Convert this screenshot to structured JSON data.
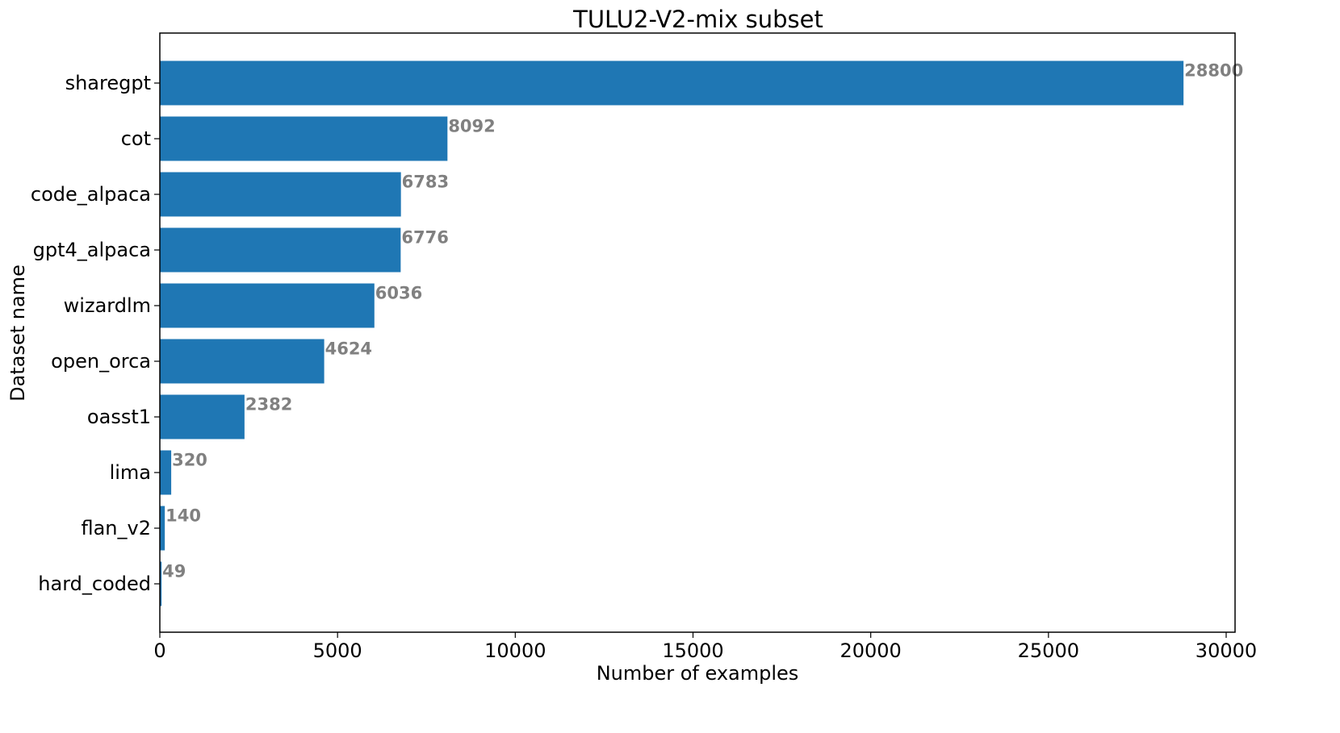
{
  "chart_data": {
    "type": "bar",
    "orientation": "horizontal",
    "title": "TULU2-V2-mix subset",
    "xlabel": "Number of examples",
    "ylabel": "Dataset name",
    "categories": [
      "sharegpt",
      "cot",
      "code_alpaca",
      "gpt4_alpaca",
      "wizardlm",
      "open_orca",
      "oasst1",
      "lima",
      "flan_v2",
      "hard_coded"
    ],
    "values": [
      28800,
      8092,
      6783,
      6776,
      6036,
      4624,
      2382,
      320,
      140,
      49
    ],
    "data_labels": [
      "28800",
      "8092",
      "6783",
      "6776",
      "6036",
      "4624",
      "2382",
      "320",
      "140",
      "49"
    ],
    "xlim": [
      0,
      30250
    ],
    "xticks": [
      0,
      5000,
      10000,
      15000,
      20000,
      25000,
      30000
    ],
    "xtick_labels": [
      "0",
      "5000",
      "10000",
      "15000",
      "20000",
      "25000",
      "30000"
    ],
    "grid": false,
    "bar_color": "#1f77b4",
    "label_color": "#808080"
  }
}
